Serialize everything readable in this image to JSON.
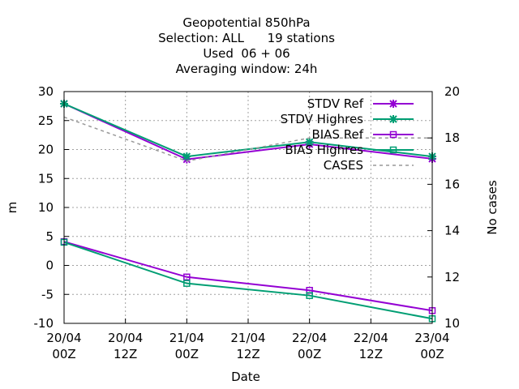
{
  "chart_data": {
    "type": "line",
    "title_lines": [
      "Geopotential 850hPa",
      "Selection: ALL      19 stations",
      "Used  06 + 06",
      "Averaging window: 24h"
    ],
    "xlabel": "Date",
    "ylabel": "m",
    "y2label": "No cases",
    "x_ticks": [
      {
        "top": "20/04",
        "bottom": "00Z"
      },
      {
        "top": "20/04",
        "bottom": "12Z"
      },
      {
        "top": "21/04",
        "bottom": "00Z"
      },
      {
        "top": "21/04",
        "bottom": "12Z"
      },
      {
        "top": "22/04",
        "bottom": "00Z"
      },
      {
        "top": "22/04",
        "bottom": "12Z"
      },
      {
        "top": "23/04",
        "bottom": "00Z"
      }
    ],
    "x_points": [
      "20/04 00Z",
      "21/04 00Z",
      "22/04 00Z",
      "23/04 00Z"
    ],
    "ylim": [
      -10,
      30
    ],
    "y_ticks": [
      30,
      25,
      20,
      15,
      10,
      5,
      0,
      -5,
      -10
    ],
    "y2lim": [
      10,
      20
    ],
    "y2_ticks": [
      20,
      18,
      16,
      14,
      12,
      10
    ],
    "grid": true,
    "legend_position": "top-right",
    "series": [
      {
        "name": "STDV Ref",
        "axis": "y",
        "color": "#9400d3",
        "marker": "x",
        "values": [
          27.9,
          18.3,
          20.9,
          18.4
        ]
      },
      {
        "name": "STDV Highres",
        "axis": "y",
        "color": "#009e73",
        "marker": "x",
        "values": [
          27.9,
          18.8,
          21.3,
          18.8
        ]
      },
      {
        "name": "BIAS Ref",
        "axis": "y",
        "color": "#9400d3",
        "marker": "square",
        "values": [
          4.1,
          -2.0,
          -4.3,
          -7.8
        ]
      },
      {
        "name": "BIAS Highres",
        "axis": "y",
        "color": "#009e73",
        "marker": "square",
        "values": [
          4.0,
          -3.1,
          -5.2,
          -9.2
        ]
      },
      {
        "name": "CASES",
        "axis": "y2",
        "color": "#999999",
        "marker": "none",
        "dashed": true,
        "values": [
          18.9,
          17.0,
          18.0,
          18.0
        ]
      }
    ]
  }
}
